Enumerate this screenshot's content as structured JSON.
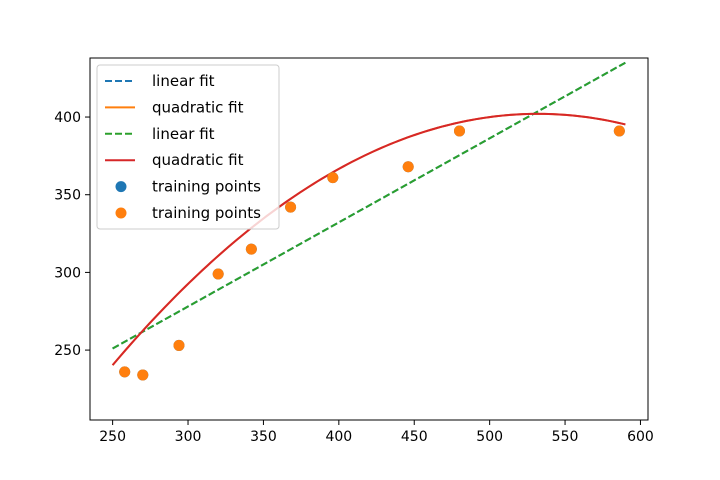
{
  "chart_data": {
    "type": "scatter",
    "xlim": [
      235,
      605
    ],
    "ylim": [
      205,
      438
    ],
    "x_ticks": [
      250,
      300,
      350,
      400,
      450,
      500,
      550,
      600
    ],
    "y_ticks": [
      250,
      300,
      350,
      400
    ],
    "grid": false,
    "legend_position": "top-left",
    "series": [
      {
        "name": "linear fit",
        "kind": "line",
        "style": "dashed",
        "color": "#1f77b4",
        "x": [
          250,
          590
        ],
        "y": [
          251,
          435
        ]
      },
      {
        "name": "quadratic fit",
        "kind": "line",
        "style": "solid",
        "color": "#ff7f0e",
        "coefficients": [
          -173.5,
          2.1636,
          -0.0020333
        ],
        "x_range": [
          250,
          590
        ]
      },
      {
        "name": "linear fit",
        "kind": "line",
        "style": "dashed",
        "color": "#2ca02c",
        "x": [
          250,
          590
        ],
        "y": [
          251,
          435
        ]
      },
      {
        "name": "quadratic fit",
        "kind": "line",
        "style": "solid",
        "color": "#d62728",
        "coefficients": [
          -173.5,
          2.1636,
          -0.0020333
        ],
        "x_range": [
          250,
          590
        ]
      },
      {
        "name": "training points",
        "kind": "scatter",
        "color": "#1f77b4",
        "x": [
          258,
          270,
          294,
          320,
          342,
          368,
          396,
          446,
          480,
          586
        ],
        "y": [
          236,
          234,
          253,
          299,
          315,
          342,
          361,
          368,
          391,
          391
        ]
      },
      {
        "name": "training points",
        "kind": "scatter",
        "color": "#ff7f0e",
        "x": [
          258,
          270,
          294,
          320,
          342,
          368,
          396,
          446,
          480,
          586
        ],
        "y": [
          236,
          234,
          253,
          299,
          315,
          342,
          361,
          368,
          391,
          391
        ]
      }
    ]
  }
}
